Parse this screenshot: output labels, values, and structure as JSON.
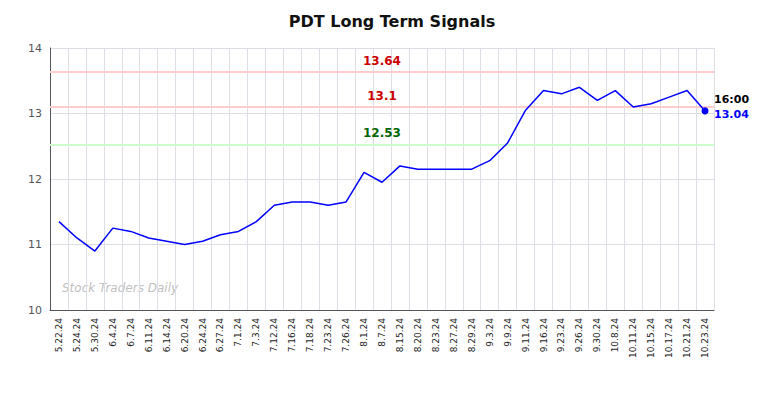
{
  "chart_data": {
    "type": "line",
    "title": "PDT Long Term Signals",
    "categories": [
      "5.22.24",
      "5.24.24",
      "5.30.24",
      "6.4.24",
      "6.7.24",
      "6.11.24",
      "6.14.24",
      "6.20.24",
      "6.24.24",
      "6.27.24",
      "7.1.24",
      "7.3.24",
      "7.12.24",
      "7.16.24",
      "7.18.24",
      "7.23.24",
      "7.26.24",
      "8.1.24",
      "8.7.24",
      "8.15.24",
      "8.20.24",
      "8.23.24",
      "8.27.24",
      "8.29.24",
      "9.3.24",
      "9.9.24",
      "9.11.24",
      "9.16.24",
      "9.23.24",
      "9.26.24",
      "9.30.24",
      "10.8.24",
      "10.11.24",
      "10.15.24",
      "10.17.24",
      "10.21.24",
      "10.23.24"
    ],
    "values": [
      11.35,
      11.1,
      10.9,
      11.25,
      11.2,
      11.1,
      11.05,
      11.0,
      11.05,
      11.15,
      11.2,
      11.35,
      11.6,
      11.65,
      11.65,
      11.6,
      11.65,
      12.1,
      11.95,
      12.2,
      12.15,
      12.15,
      12.15,
      12.15,
      12.28,
      12.55,
      13.05,
      13.35,
      13.3,
      13.4,
      13.2,
      13.35,
      13.1,
      13.15,
      13.25,
      13.35,
      13.04
    ],
    "color": "blue",
    "marker": "circle",
    "ylim": [
      10,
      14
    ],
    "yticks": [
      10,
      11,
      12,
      13,
      14
    ],
    "grid": true,
    "annotations": [
      {
        "type": "hline",
        "y": 13.64,
        "text": "13.64",
        "color": "#ffcccc",
        "text_color": "#cc0000"
      },
      {
        "type": "hline",
        "y": 13.1,
        "text": "13.1",
        "color": "#ffcccc",
        "text_color": "#cc0000"
      },
      {
        "type": "hline",
        "y": 12.53,
        "text": "12.53",
        "color": "#ccffcc",
        "text_color": "#006600"
      },
      {
        "type": "watermark",
        "text": "Stock Traders Daily",
        "color": "#c0c0c0"
      },
      {
        "type": "last_point",
        "text": "16:00",
        "color": "black"
      },
      {
        "type": "last_point",
        "text": "13.04",
        "color": "blue"
      }
    ]
  }
}
